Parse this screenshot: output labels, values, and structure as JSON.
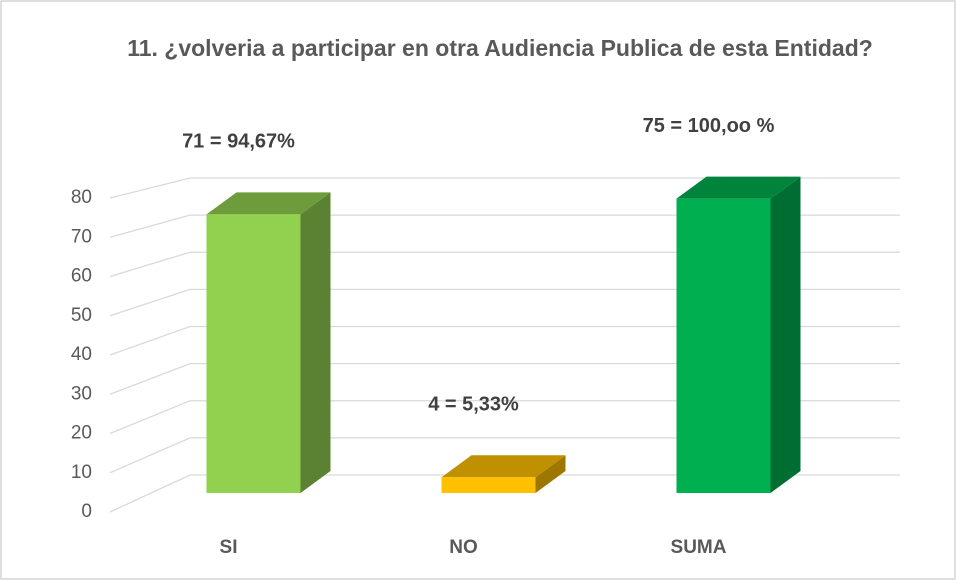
{
  "chart_data": {
    "type": "bar3d",
    "title": "11.  ¿volveria a participar en otra Audiencia Publica de esta Entidad?",
    "categories": [
      "SI",
      "NO",
      "SUMA"
    ],
    "values": [
      71,
      4,
      75
    ],
    "value_labels": [
      "71 = 94,67%",
      "4 = 5,33%",
      "75 = 100,oo %"
    ],
    "colors": [
      "#92d050",
      "#ffc000",
      "#00b050"
    ],
    "ylim": [
      0,
      80
    ],
    "yticks": [
      0,
      10,
      20,
      30,
      40,
      50,
      60,
      70,
      80
    ],
    "grid": true
  }
}
